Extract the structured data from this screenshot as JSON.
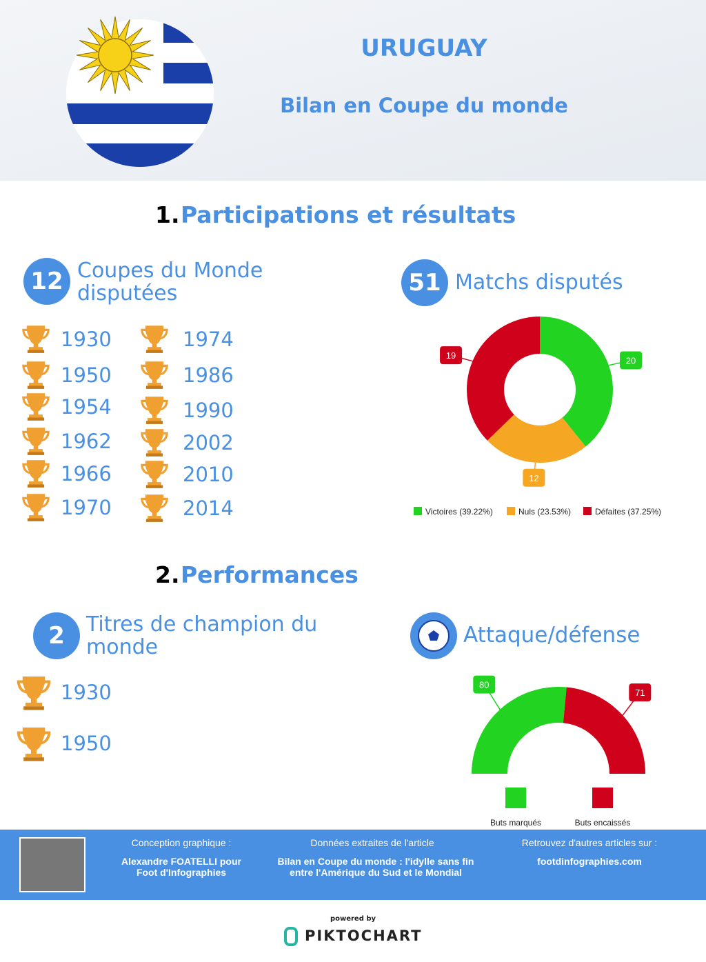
{
  "header": {
    "title": "URUGUAY",
    "subtitle": "Bilan en Coupe du monde"
  },
  "section1": {
    "number": "1.",
    "title": "Participations et résultats"
  },
  "participations": {
    "count": 12,
    "label": "Coupes du Monde disputées",
    "years": [
      1930,
      1950,
      1954,
      1962,
      1966,
      1970,
      1974,
      1986,
      1990,
      2002,
      2010,
      2014
    ]
  },
  "matches": {
    "count": 51,
    "label": "Matchs disputés"
  },
  "section2": {
    "number": "2.",
    "title": "Performances"
  },
  "titles": {
    "count": 2,
    "label": "Titres de champion du monde",
    "years": [
      1930,
      1950
    ]
  },
  "attack": {
    "label": "Attaque/défense"
  },
  "chart_data": [
    {
      "type": "donut",
      "categories": [
        "Victoires (39.22%)",
        "Nuls (23.53%)",
        "Défaites (37.25%)"
      ],
      "values": [
        20,
        12,
        19
      ],
      "colors": [
        "#22d322",
        "#f5a623",
        "#d0021b"
      ]
    },
    {
      "type": "semi-donut",
      "categories": [
        "Buts marqués",
        "Buts encaissés"
      ],
      "values": [
        80,
        71
      ],
      "colors": [
        "#22d322",
        "#d0021b"
      ]
    }
  ],
  "footer": {
    "design": {
      "heading": "Conception graphique :",
      "author": "Alexandre FOATELLI pour Foot d'Infographies"
    },
    "source": {
      "heading": "Données extraites de l'article",
      "article": "Bilan en Coupe du monde : l'idylle sans fin entre l'Amérique du Sud et le Mondial"
    },
    "more": {
      "heading": "Retrouvez d'autres articles sur :",
      "site": "footdinfographies.com"
    }
  },
  "powered": {
    "by": "powered by",
    "brand": "PIKTOCHART"
  }
}
